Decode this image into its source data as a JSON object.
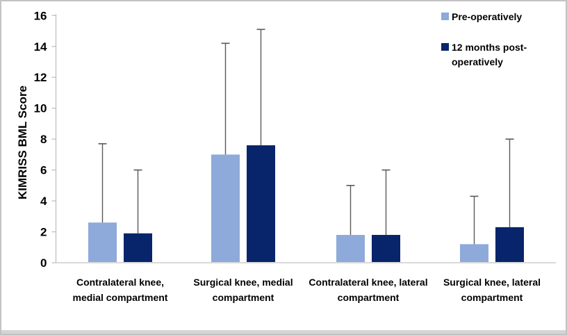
{
  "chart_data": {
    "type": "bar",
    "title": "",
    "xlabel": "",
    "ylabel": "KIMRISS BML Score",
    "ylim": [
      0,
      16
    ],
    "ytick_step": 2,
    "yticks": [
      0,
      2,
      4,
      6,
      8,
      10,
      12,
      14,
      16
    ],
    "grid": false,
    "legend_position": "top-right",
    "error_bars": "upper whisker with cap",
    "categories": [
      [
        "Contralateral knee,",
        "medial compartment"
      ],
      [
        "Surgical knee, medial",
        "compartment"
      ],
      [
        "Contralateral knee, lateral",
        "compartment"
      ],
      [
        "Surgical knee, lateral",
        "compartment"
      ]
    ],
    "series": [
      {
        "name": "Pre-operatively",
        "legend_lines": [
          "Pre-operatively"
        ],
        "color": "#8EAADB",
        "values": [
          2.6,
          7.0,
          1.8,
          1.2
        ],
        "error_top": [
          7.7,
          14.2,
          5.0,
          4.3
        ]
      },
      {
        "name": "12 months post-operatively",
        "legend_lines": [
          "12 months post-",
          "operatively"
        ],
        "color": "#08246B",
        "values": [
          1.9,
          7.6,
          1.8,
          2.3
        ],
        "error_top": [
          6.0,
          15.1,
          6.0,
          8.0
        ]
      }
    ]
  },
  "colors": {
    "background": "#FFFFFF",
    "frame_border": "#C3C3C3",
    "bottom_strip": "#D5D5D5",
    "y_axis_line": "#BFBFBF",
    "x_axis_line": "#D9D9D9",
    "error_bar": "#595959",
    "text": "#000000"
  }
}
